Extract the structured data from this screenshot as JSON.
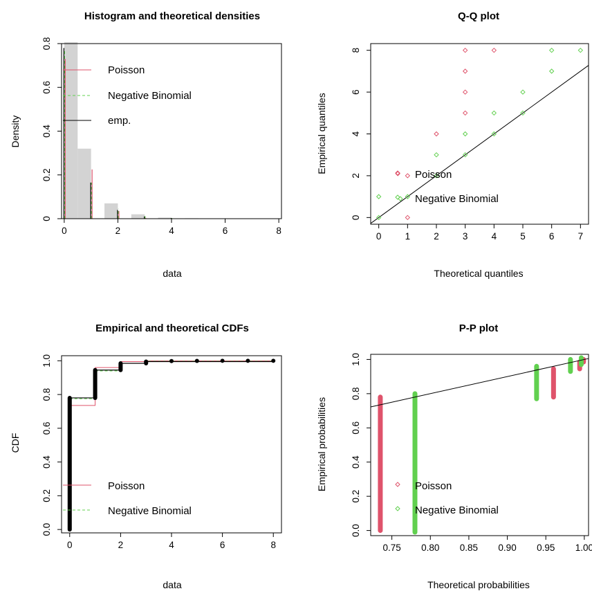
{
  "colors": {
    "poisson": "#DF536B",
    "negbin": "#61D04F",
    "emp": "#000000",
    "hist": "#D3D3D3"
  },
  "chart_data": [
    {
      "id": "hist",
      "type": "bar",
      "title": "Histogram and theoretical densities",
      "xlabel": "data",
      "ylabel": "Density",
      "xlim": [
        -0.1,
        8.1
      ],
      "ylim": [
        0,
        0.8
      ],
      "xticks": [
        0,
        2,
        4,
        6,
        8
      ],
      "yticks": [
        0,
        0.2,
        0.4,
        0.6,
        0.8
      ],
      "bins": [
        {
          "x0": 0,
          "x1": 0.5,
          "value": 0.82
        },
        {
          "x0": 0.5,
          "x1": 1,
          "value": 0.32
        },
        {
          "x0": 1.5,
          "x1": 2,
          "value": 0.07
        },
        {
          "x0": 2.5,
          "x1": 3,
          "value": 0.02
        },
        {
          "x0": 3.5,
          "x1": 4,
          "value": 0.005
        },
        {
          "x0": 4.5,
          "x1": 5,
          "value": 0.002
        },
        {
          "x0": 5.5,
          "x1": 6,
          "value": 0.001
        },
        {
          "x0": 6.5,
          "x1": 7,
          "value": 0.001
        },
        {
          "x0": 7.5,
          "x1": 8,
          "value": 0.001
        }
      ],
      "series": [
        {
          "name": "Poisson",
          "x": [
            0,
            1,
            2,
            3,
            4,
            5,
            6,
            7,
            8
          ],
          "values": [
            0.73,
            0.225,
            0.035,
            0.004,
            0.0003,
            0,
            0,
            0,
            0
          ]
        },
        {
          "name": "Negative Binomial",
          "x": [
            0,
            1,
            2,
            3,
            4,
            5,
            6,
            7,
            8
          ],
          "values": [
            0.775,
            0.165,
            0.045,
            0.012,
            0.003,
            0.001,
            0,
            0,
            0
          ]
        },
        {
          "name": "emp.",
          "x": [
            0,
            1,
            2,
            3,
            4,
            5,
            6,
            7,
            8
          ],
          "values": [
            0.78,
            0.165,
            0.04,
            0.01,
            0.003,
            0.001,
            0.0005,
            0.0005,
            0.0005
          ]
        }
      ],
      "legend": [
        "Poisson",
        "Negative Binomial",
        "emp."
      ],
      "legend_position": "top-right"
    },
    {
      "id": "qq",
      "type": "scatter",
      "title": "Q-Q plot",
      "xlabel": "Theoretical quantiles",
      "ylabel": "Empirical quantiles",
      "xlim": [
        -0.28,
        7.28
      ],
      "ylim": [
        -0.32,
        8.32
      ],
      "xticks": [
        0,
        1,
        2,
        3,
        4,
        5,
        6,
        7
      ],
      "yticks": [
        0,
        2,
        4,
        6,
        8
      ],
      "series": [
        {
          "name": "Poisson",
          "points": [
            [
              1,
              0
            ],
            [
              0.66,
              2.1
            ],
            [
              1,
              2
            ],
            [
              2,
              4
            ],
            [
              3,
              5
            ],
            [
              3,
              6
            ],
            [
              3,
              7
            ],
            [
              3,
              8
            ],
            [
              4,
              8
            ]
          ]
        },
        {
          "name": "Negative Binomial",
          "points": [
            [
              0,
              0
            ],
            [
              0,
              1
            ],
            [
              0.75,
              0.9
            ],
            [
              1,
              1
            ],
            [
              2,
              2
            ],
            [
              2,
              3
            ],
            [
              3,
              3
            ],
            [
              3,
              4
            ],
            [
              4,
              4
            ],
            [
              4,
              5
            ],
            [
              5,
              5
            ],
            [
              5,
              6
            ],
            [
              6,
              7
            ],
            [
              6,
              8
            ],
            [
              7,
              8
            ]
          ]
        }
      ],
      "reference_line": [
        [
          -0.28,
          -0.28
        ],
        [
          7.28,
          7.28
        ]
      ],
      "legend": [
        "Poisson",
        "Negative Binomial"
      ],
      "legend_position": "center-left"
    },
    {
      "id": "cdf",
      "type": "line",
      "title": "Empirical and theoretical CDFs",
      "xlabel": "data",
      "ylabel": "CDF",
      "xlim": [
        -0.32,
        8.32
      ],
      "ylim": [
        -0.02,
        1.03
      ],
      "xticks": [
        0,
        2,
        4,
        6,
        8
      ],
      "yticks": [
        0,
        0.2,
        0.4,
        0.6,
        0.8,
        1
      ],
      "ytick_labels": [
        "0.0",
        "0.2",
        "0.4",
        "0.6",
        "0.8",
        "1.0"
      ],
      "empirical_jumps": [
        {
          "x": 0,
          "y0": 0,
          "y1": 0.78
        },
        {
          "x": 1,
          "y0": 0.78,
          "y1": 0.945
        },
        {
          "x": 2,
          "y0": 0.945,
          "y1": 0.985
        },
        {
          "x": 3,
          "y0": 0.985,
          "y1": 0.995
        }
      ],
      "empirical_points": [
        [
          4,
          0.998
        ],
        [
          5,
          0.999
        ],
        [
          6,
          1
        ],
        [
          7,
          1
        ],
        [
          8,
          1
        ]
      ],
      "series": [
        {
          "name": "Poisson",
          "steps": [
            [
              0,
              0.735
            ],
            [
              1,
              0.96
            ],
            [
              2,
              0.995
            ],
            [
              3,
              0.999
            ],
            [
              8,
              1
            ]
          ]
        },
        {
          "name": "Negative Binomial",
          "steps": [
            [
              0,
              0.775
            ],
            [
              1,
              0.94
            ],
            [
              2,
              0.985
            ],
            [
              3,
              0.997
            ],
            [
              8,
              1
            ]
          ]
        }
      ],
      "legend": [
        "Poisson",
        "Negative Binomial"
      ],
      "legend_position": "bottom-right"
    },
    {
      "id": "pp",
      "type": "scatter",
      "title": "P-P plot",
      "xlabel": "Theoretical probabilities",
      "ylabel": "Empirical probabilities",
      "xlim": [
        0.7225,
        1.0055
      ],
      "ylim": [
        -0.03,
        1.03
      ],
      "xticks": [
        0.75,
        0.8,
        0.85,
        0.9,
        0.95,
        1
      ],
      "xtick_labels": [
        "0.75",
        "0.80",
        "0.85",
        "0.90",
        "0.95",
        "1.00"
      ],
      "yticks": [
        0,
        0.2,
        0.4,
        0.6,
        0.8,
        1
      ],
      "ytick_labels": [
        "0.0",
        "0.2",
        "0.4",
        "0.6",
        "0.8",
        "1.0"
      ],
      "series": [
        {
          "name": "Poisson",
          "bands": [
            {
              "x": 0.735,
              "y0": 0,
              "y1": 0.78
            },
            {
              "x": 0.96,
              "y0": 0.78,
              "y1": 0.945
            },
            {
              "x": 0.994,
              "y0": 0.945,
              "y1": 0.985
            },
            {
              "x": 0.999,
              "y0": 0.985,
              "y1": 1
            }
          ]
        },
        {
          "name": "Negative Binomial",
          "bands": [
            {
              "x": 0.78,
              "y0": -0.01,
              "y1": 0.8
            },
            {
              "x": 0.938,
              "y0": 0.77,
              "y1": 0.96
            },
            {
              "x": 0.982,
              "y0": 0.93,
              "y1": 1
            },
            {
              "x": 0.996,
              "y0": 0.97,
              "y1": 1.01
            }
          ]
        }
      ],
      "reference_line": [
        [
          0.7225,
          0.7225
        ],
        [
          1.0055,
          1.0055
        ]
      ],
      "legend": [
        "Poisson",
        "Negative Binomial"
      ],
      "legend_position": "bottom-left"
    }
  ]
}
